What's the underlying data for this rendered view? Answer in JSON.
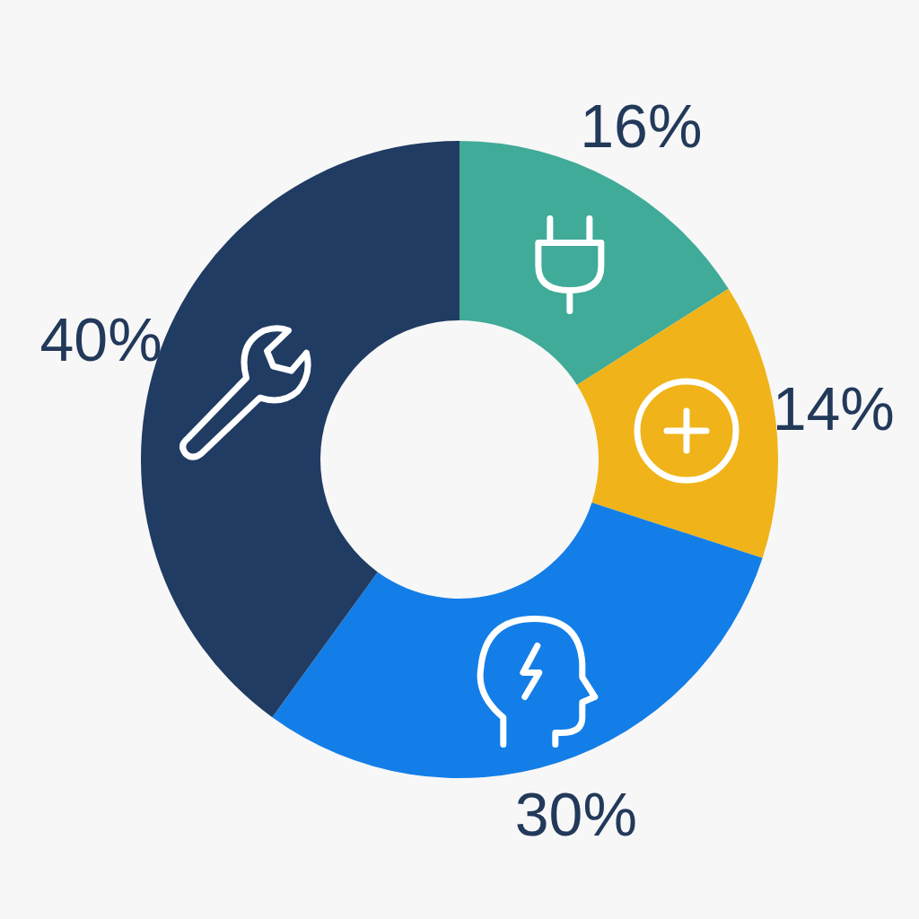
{
  "chart_data": {
    "type": "donut",
    "categories": [
      null,
      null,
      null,
      null
    ],
    "values": [
      16,
      14,
      30,
      40
    ],
    "colors": [
      "#40ab98",
      "#f0b319",
      "#137ee8",
      "#213c63"
    ],
    "value_labels": [
      "16%",
      "14%",
      "30%",
      "40%"
    ]
  }
}
